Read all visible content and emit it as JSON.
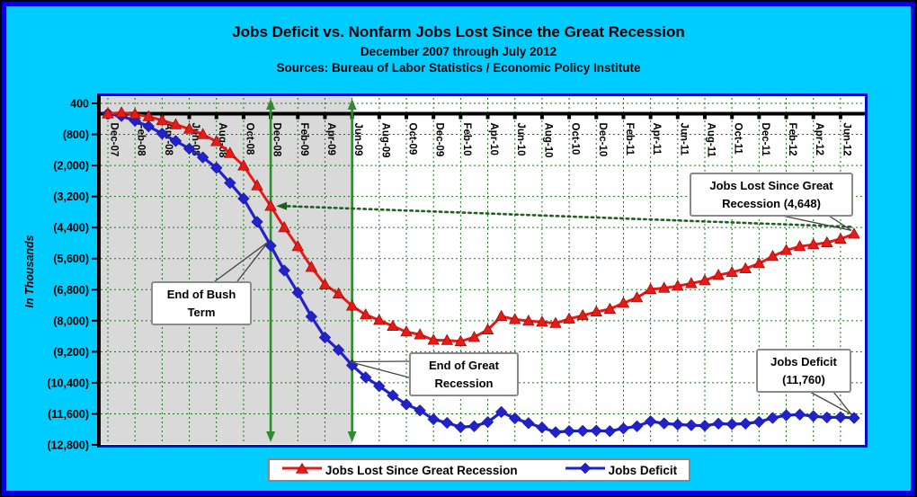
{
  "chart_data": {
    "type": "line",
    "title": "Jobs Deficit vs. Nonfarm Jobs Lost Since the Great Recession",
    "subtitle": "December 2007 through July 2012",
    "source_line": "Sources: Bureau of Labor Statistics / Economic Policy Institute",
    "ylabel": "In Thousands",
    "ylim": [
      -12800,
      400
    ],
    "y_tick_step": 1200,
    "grid": true,
    "legend_position": "bottom",
    "y_tick_values": [
      400,
      -800,
      -2000,
      -3200,
      -4400,
      -5600,
      -6800,
      -8000,
      -9200,
      -10400,
      -11600,
      -12800
    ],
    "y_tick_labels": [
      "400",
      "(800)",
      "(2,000)",
      "(3,200)",
      "(4,400)",
      "(5,600)",
      "(6,800)",
      "(8,000)",
      "(9,200)",
      "(10,400)",
      "(11,600)",
      "(12,800)"
    ],
    "x_label_every": 2,
    "categories": [
      "Dec-07",
      "Jan-08",
      "Feb-08",
      "Mar-08",
      "Apr-08",
      "May-08",
      "Jun-08",
      "Jul-08",
      "Aug-08",
      "Sep-08",
      "Oct-08",
      "Nov-08",
      "Dec-08",
      "Jan-09",
      "Feb-09",
      "Mar-09",
      "Apr-09",
      "May-09",
      "Jun-09",
      "Jul-09",
      "Aug-09",
      "Sep-09",
      "Oct-09",
      "Nov-09",
      "Dec-09",
      "Jan-10",
      "Feb-10",
      "Mar-10",
      "Apr-10",
      "May-10",
      "Jun-10",
      "Jul-10",
      "Aug-10",
      "Sep-10",
      "Oct-10",
      "Nov-10",
      "Dec-10",
      "Jan-11",
      "Feb-11",
      "Mar-11",
      "Apr-11",
      "May-11",
      "Jun-11",
      "Jul-11",
      "Aug-11",
      "Sep-11",
      "Oct-11",
      "Nov-11",
      "Dec-11",
      "Jan-12",
      "Feb-12",
      "Mar-12",
      "Apr-12",
      "May-12",
      "Jun-12",
      "Jul-12"
    ],
    "series": [
      {
        "name": "Jobs Lost Since Great Recession",
        "marker": "triangle",
        "color": "#E41B17",
        "final_value_label": "(4,648)",
        "values": [
          0,
          40,
          -20,
          -110,
          -260,
          -420,
          -590,
          -800,
          -1075,
          -1530,
          -2010,
          -2780,
          -3570,
          -4400,
          -5130,
          -5930,
          -6610,
          -6960,
          -7430,
          -7770,
          -7980,
          -8210,
          -8430,
          -8540,
          -8750,
          -8760,
          -8800,
          -8640,
          -8350,
          -7830,
          -7950,
          -8010,
          -8050,
          -8100,
          -7930,
          -7800,
          -7660,
          -7550,
          -7320,
          -7110,
          -6790,
          -6740,
          -6660,
          -6560,
          -6450,
          -6240,
          -6130,
          -5990,
          -5790,
          -5510,
          -5280,
          -5130,
          -5060,
          -4980,
          -4840,
          -4648
        ]
      },
      {
        "name": "Jobs Deficit",
        "marker": "diamond",
        "color": "#2222CC",
        "final_value_label": "(11,760)",
        "values": [
          0,
          -90,
          -275,
          -490,
          -770,
          -1055,
          -1355,
          -1690,
          -2095,
          -2675,
          -3280,
          -4180,
          -5100,
          -6060,
          -6915,
          -7840,
          -8650,
          -9130,
          -9725,
          -10190,
          -10530,
          -10890,
          -11235,
          -11470,
          -11810,
          -11950,
          -12115,
          -12080,
          -11920,
          -11530,
          -11775,
          -11960,
          -12130,
          -12310,
          -12265,
          -12260,
          -12250,
          -12270,
          -12165,
          -12080,
          -11890,
          -11970,
          -12015,
          -12040,
          -12060,
          -11980,
          -12000,
          -11980,
          -11910,
          -11760,
          -11655,
          -11630,
          -11690,
          -11740,
          -11730,
          -11760
        ]
      }
    ],
    "recession_band": {
      "from": "Dec-07",
      "to": "Jun-09"
    },
    "event_lines": [
      {
        "name": "end-of-bush-term-line",
        "at": "Dec-08"
      },
      {
        "name": "end-of-great-recession-line",
        "at": "Jun-09"
      }
    ],
    "comparison_arrow": {
      "series": 0,
      "from": "Jul-12",
      "to": "Dec-08"
    },
    "annotations": {
      "jobs_lost": {
        "text": "Jobs Lost Since Great Recession (4,648)",
        "points_to": {
          "series": 0,
          "category": "Jul-12"
        }
      },
      "end_of_bush": {
        "text": "End of Bush Term",
        "points_to": {
          "series": 1,
          "category": "Dec-08"
        }
      },
      "end_of_recession": {
        "text": "End of Great Recession",
        "points_to": {
          "series": 1,
          "category": "Jun-09"
        }
      },
      "jobs_deficit": {
        "text": "Jobs Deficit (11,760)",
        "points_to": {
          "series": 1,
          "category": "Jul-12"
        }
      }
    },
    "colors": {
      "background": "#00CCFF",
      "frame_border": "#0000E0",
      "plot_border": "#0011CC",
      "recession_band": "#D9D9D9",
      "gridline": "#117711",
      "zero_axis": "#000000",
      "event_line": "#2E8B2E",
      "comparison_arrow": "#1F5F1F",
      "leader_line": "#444444",
      "series_jobs_lost": "#E41B17",
      "series_jobs_deficit": "#2222CC"
    }
  }
}
